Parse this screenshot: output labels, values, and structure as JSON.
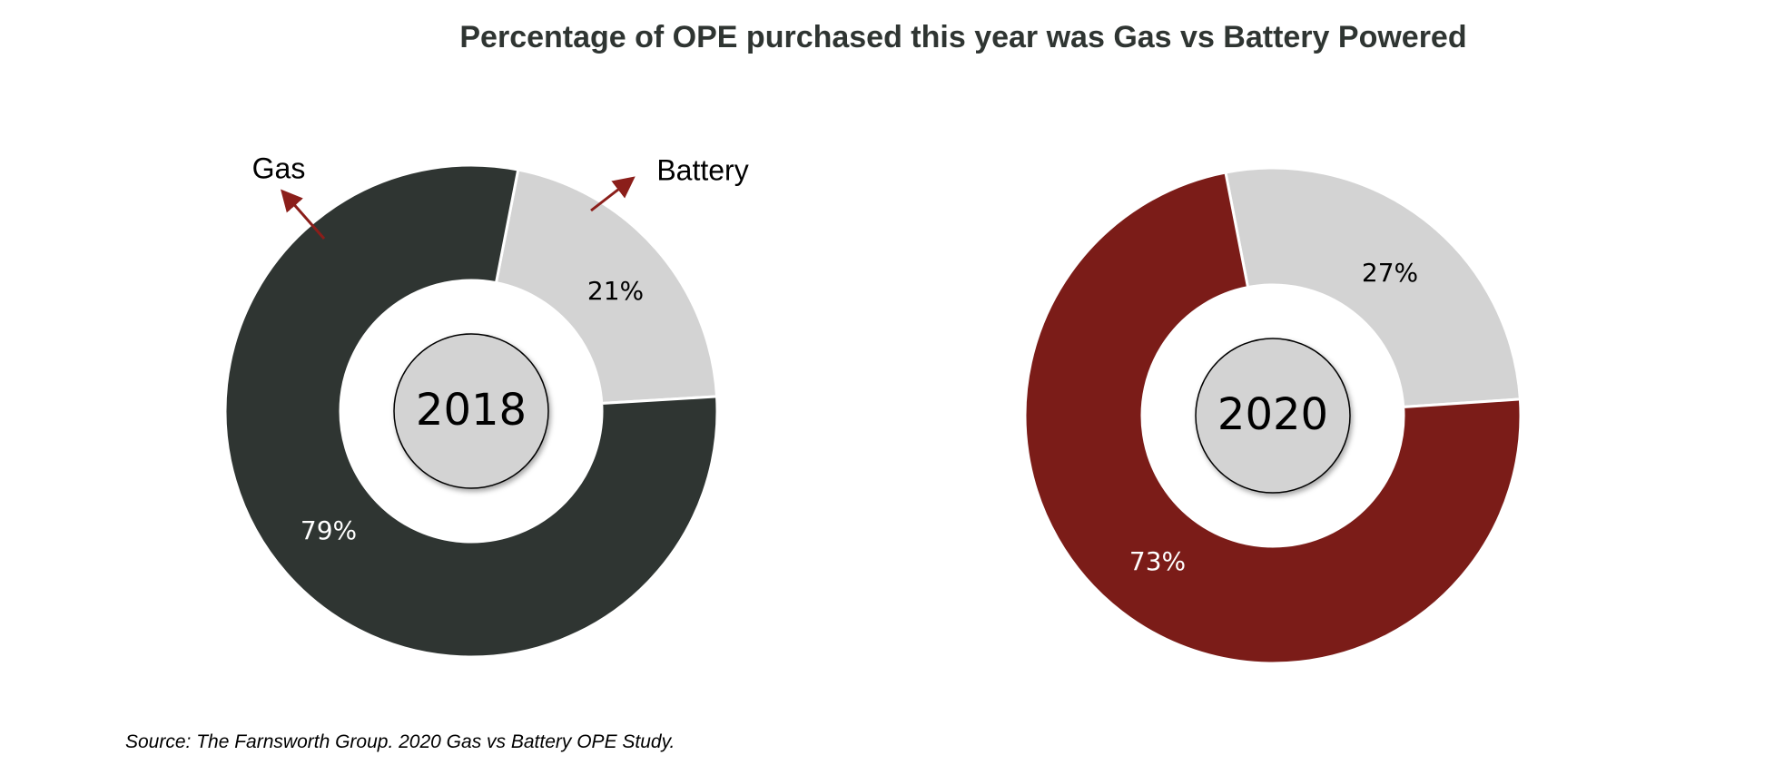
{
  "chart_data": [
    {
      "type": "pie",
      "center_label": "2018",
      "slices": [
        {
          "name": "Battery",
          "value": 21,
          "label": "21%",
          "color": "#d3d3d3",
          "label_color": "#000000"
        },
        {
          "name": "Gas",
          "value": 79,
          "label": "79%",
          "color": "#2f3532",
          "label_color": "#ffffff"
        }
      ],
      "annotations": [
        {
          "text": "Gas",
          "arrow_color": "#8b1e1a"
        },
        {
          "text": "Battery",
          "arrow_color": "#8b1e1a"
        }
      ]
    },
    {
      "type": "pie",
      "center_label": "2020",
      "slices": [
        {
          "name": "Battery",
          "value": 27,
          "label": "27%",
          "color": "#d3d3d3",
          "label_color": "#000000"
        },
        {
          "name": "Gas",
          "value": 73,
          "label": "73%",
          "color": "#7b1c18",
          "label_color": "#ffffff"
        }
      ]
    }
  ],
  "title": "Percentage of OPE purchased this year was Gas vs Battery Powered",
  "source": "Source: The Farnsworth Group.  2020 Gas vs Battery OPE Study."
}
